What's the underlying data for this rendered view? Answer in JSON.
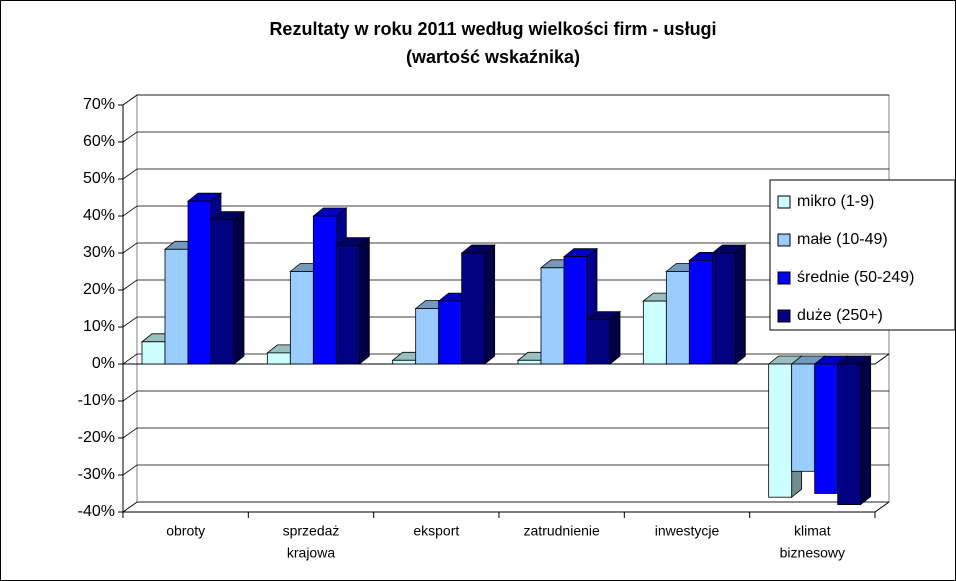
{
  "chart_data": {
    "type": "bar3d",
    "title": "Rezultaty w roku 2011 według wielkości firm - usługi",
    "subtitle": "(wartość wskaźnika)",
    "categories": [
      [
        "obroty"
      ],
      [
        "sprzedaż",
        "krajowa"
      ],
      [
        "eksport"
      ],
      [
        "zatrudnienie"
      ],
      [
        "inwestycje"
      ],
      [
        "klimat",
        "biznesowy"
      ]
    ],
    "series": [
      {
        "name": "mikro (1-9)",
        "color": "#ccffff",
        "values": [
          6,
          3,
          1,
          1,
          17,
          -36
        ]
      },
      {
        "name": "małe (10-49)",
        "color": "#99ccff",
        "values": [
          31,
          25,
          15,
          26,
          25,
          -29
        ]
      },
      {
        "name": "średnie (50-249)",
        "color": "#0000ff",
        "values": [
          44,
          40,
          17,
          29,
          28,
          -35
        ]
      },
      {
        "name": "duże (250+)",
        "color": "#000080",
        "values": [
          39,
          32,
          30,
          12,
          30,
          -38
        ]
      }
    ],
    "ylim": [
      -40,
      70
    ],
    "yticks": [
      {
        "value": -40,
        "label": "-40%"
      },
      {
        "value": -30,
        "label": "-30%"
      },
      {
        "value": -20,
        "label": "-20%"
      },
      {
        "value": -10,
        "label": "-10%"
      },
      {
        "value": 0,
        "label": "0%"
      },
      {
        "value": 10,
        "label": "10%"
      },
      {
        "value": 20,
        "label": "20%"
      },
      {
        "value": 30,
        "label": "30%"
      },
      {
        "value": 40,
        "label": "40%"
      },
      {
        "value": 50,
        "label": "50%"
      },
      {
        "value": 60,
        "label": "60%"
      },
      {
        "value": 70,
        "label": "70%"
      }
    ],
    "grid": true,
    "legend": "right"
  }
}
